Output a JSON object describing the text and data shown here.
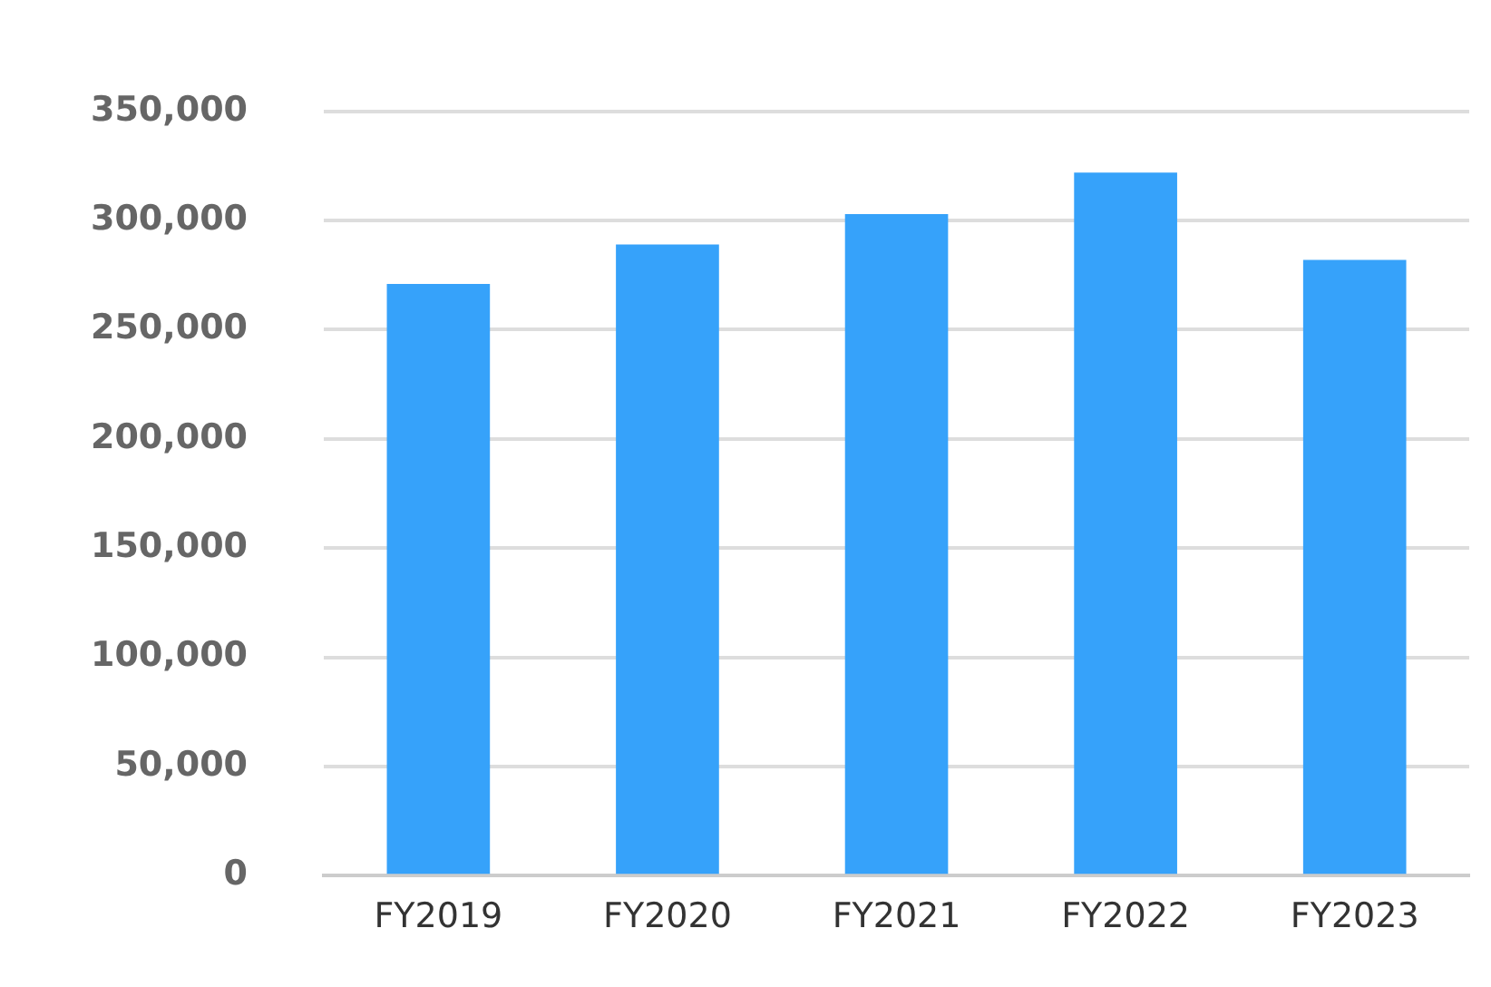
{
  "chart_data": {
    "type": "bar",
    "categories": [
      "FY2019",
      "FY2020",
      "FY2021",
      "FY2022",
      "FY2023"
    ],
    "values": [
      271000,
      289000,
      303000,
      322000,
      282000
    ],
    "color": "#36a2fa",
    "ylim": [
      0,
      350000
    ],
    "yticks": [
      0,
      {
        "value": 50000,
        "label": "50,000"
      },
      {
        "value": 100000,
        "label": "100,000"
      },
      {
        "value": 150000,
        "label": "150,000"
      },
      {
        "value": 200000,
        "label": "200,000"
      },
      {
        "value": 250000,
        "label": "250,000"
      },
      {
        "value": 300000,
        "label": "300,000"
      },
      {
        "value": 350000,
        "label": "350,000"
      }
    ],
    "grid": "y",
    "legend": false
  }
}
